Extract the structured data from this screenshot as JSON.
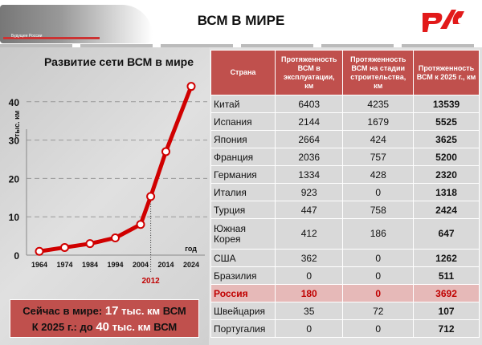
{
  "header": {
    "title": "ВСМ В МИРЕ",
    "logo_text": "РЖД",
    "train_label": "Будущее России"
  },
  "colors": {
    "accent": "#c00000",
    "header_cell": "#c0504d",
    "russia_row": "#e6b9b8"
  },
  "chart_data": {
    "type": "line",
    "title": "Развитие сети ВСМ в мире",
    "ylabel": "тыс. км",
    "xlabel": "год",
    "x_ticks": [
      "1964",
      "1974",
      "1984",
      "1994",
      "2004",
      "2014",
      "2024"
    ],
    "y_ticks": [
      0,
      10,
      20,
      30,
      40
    ],
    "ylim": [
      0,
      44
    ],
    "grid": "horizontal dashed",
    "highlight_label": "2012",
    "x": [
      1964,
      1974,
      1984,
      1994,
      2004,
      2012,
      2014,
      2024
    ],
    "values": [
      1,
      2,
      3,
      4.5,
      8,
      15.3,
      27,
      44
    ]
  },
  "summary": {
    "line1_prefix": "Сейчас в мире:",
    "line1_value": "17",
    "line1_unit": "тыс. км",
    "line1_suffix": "ВСМ",
    "line2_prefix": "К 2025 г.:  до",
    "line2_value": "40",
    "line2_unit": "тыс. км",
    "line2_suffix": "ВСМ"
  },
  "table": {
    "headers": [
      "Страна",
      "Протяженность ВСМ в эксплуатации, км",
      "Протяженность ВСМ на стадии строительства, км",
      "Протяженность ВСМ к 2025 г., км"
    ],
    "rows": [
      [
        "Китай",
        "6403",
        "4235",
        "13539"
      ],
      [
        "Испания",
        "2144",
        "1679",
        "5525"
      ],
      [
        "Япония",
        "2664",
        "424",
        "3625"
      ],
      [
        "Франция",
        "2036",
        "757",
        "5200"
      ],
      [
        "Германия",
        "1334",
        "428",
        "2320"
      ],
      [
        "Италия",
        "923",
        "0",
        "1318"
      ],
      [
        "Турция",
        "447",
        "758",
        "2424"
      ],
      [
        "Южная Корея",
        "412",
        "186",
        "647"
      ],
      [
        "США",
        "362",
        "0",
        "1262"
      ],
      [
        "Бразилия",
        "0",
        "0",
        "511"
      ],
      [
        "Россия",
        "180",
        "0",
        "3692"
      ],
      [
        "Швейцария",
        "35",
        "72",
        "107"
      ],
      [
        "Португалия",
        "0",
        "0",
        "712"
      ]
    ]
  }
}
